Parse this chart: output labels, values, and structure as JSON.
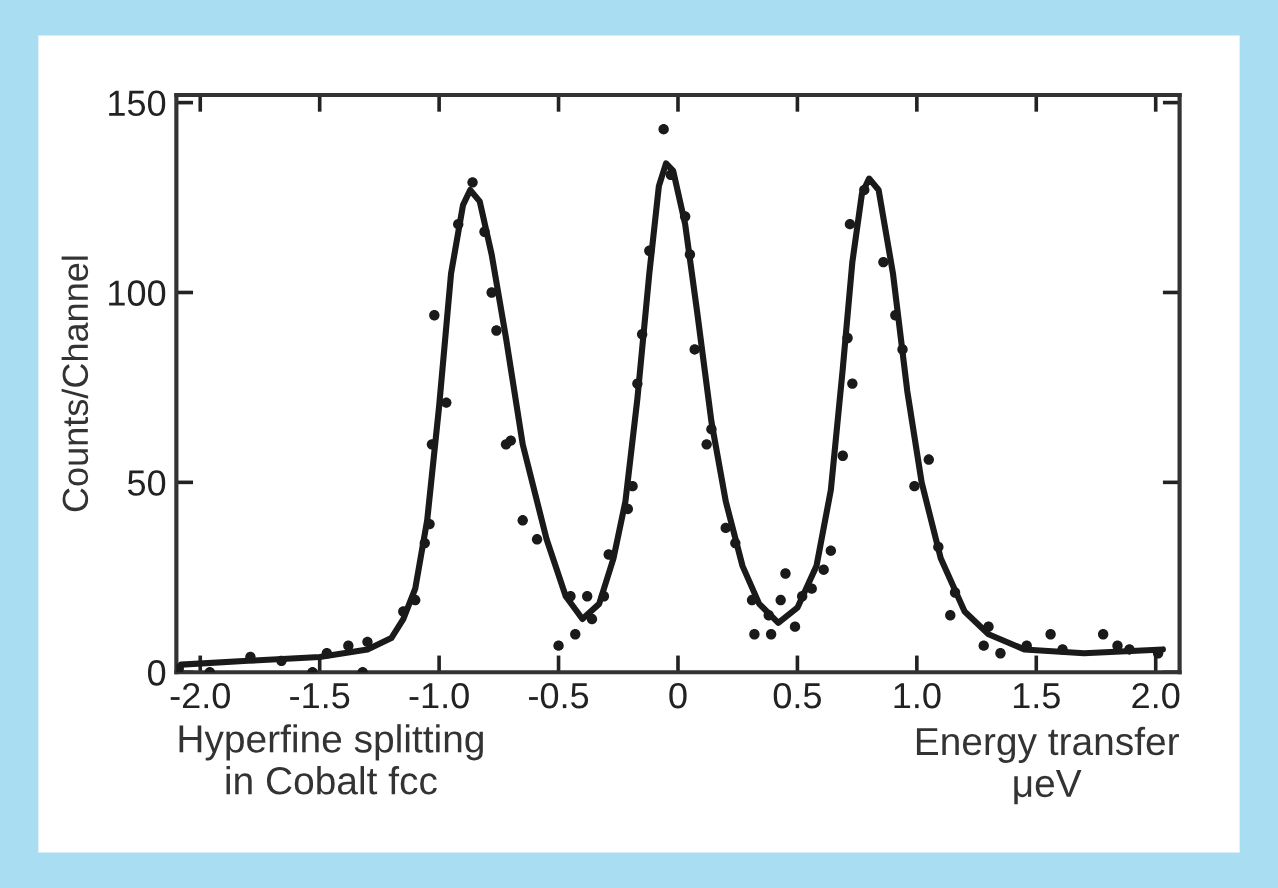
{
  "chart_data": {
    "type": "scatter",
    "ylabel": "Counts/Channel",
    "xlabel": "Energy transfer\nμeV",
    "annotations": [
      "Hyperfine splitting\nin Cobalt fcc"
    ],
    "xlim": [
      -2.1,
      2.1
    ],
    "ylim": [
      0,
      152
    ],
    "xticks": [
      {
        "value": -2.0,
        "label": "-2.0"
      },
      {
        "value": -1.5,
        "label": "-1.5"
      },
      {
        "value": -1.0,
        "label": "-1.0"
      },
      {
        "value": -0.5,
        "label": "-0.5"
      },
      0,
      {
        "value": 0.5,
        "label": "0.5"
      },
      {
        "value": 1.0,
        "label": "1.0"
      },
      {
        "value": 1.5,
        "label": "1.5"
      },
      {
        "value": 2.0,
        "label": "2.0"
      }
    ],
    "yticks": [
      0,
      50,
      100,
      150
    ],
    "grid": false,
    "legend": false,
    "series": [
      {
        "color": "#1a1a1a",
        "marker": "circle",
        "x": [
          -2.09,
          -1.96,
          -1.79,
          -1.66,
          -1.53,
          -1.47,
          -1.38,
          -1.32,
          -1.3,
          -1.15,
          -1.1,
          -1.06,
          -1.04,
          -1.03,
          -1.02,
          -0.97,
          -0.92,
          -0.86,
          -0.81,
          -0.78,
          -0.76,
          -0.72,
          -0.7,
          -0.65,
          -0.59,
          -0.5,
          -0.45,
          -0.43,
          -0.38,
          -0.36,
          -0.31,
          -0.29,
          -0.21,
          -0.19,
          -0.17,
          -0.15,
          -0.12,
          -0.06,
          -0.03,
          0.03,
          0.05,
          0.07,
          0.12,
          0.14,
          0.2,
          0.24,
          0.31,
          0.32,
          0.38,
          0.39,
          0.43,
          0.45,
          0.49,
          0.52,
          0.56,
          0.61,
          0.64,
          0.69,
          0.71,
          0.72,
          0.73,
          0.78,
          0.86,
          0.91,
          0.94,
          0.99,
          1.05,
          1.09,
          1.14,
          1.16,
          1.28,
          1.3,
          1.35,
          1.46,
          1.56,
          1.61,
          1.78,
          1.84,
          1.89,
          2.01
        ],
        "values": [
          1,
          0,
          4,
          3,
          0,
          5,
          7,
          0,
          8,
          16,
          19,
          34,
          39,
          60,
          94,
          71,
          118,
          129,
          116,
          100,
          90,
          60,
          61,
          40,
          35,
          7,
          20,
          10,
          20,
          14,
          20,
          31,
          43,
          49,
          76,
          89,
          111,
          143,
          131,
          120,
          110,
          85,
          60,
          64,
          38,
          34,
          19,
          10,
          15,
          10,
          19,
          26,
          12,
          20,
          22,
          27,
          32,
          57,
          88,
          118,
          76,
          127,
          108,
          94,
          85,
          49,
          56,
          33,
          15,
          21,
          7,
          12,
          5,
          7,
          10,
          6,
          10,
          7,
          6,
          5
        ]
      },
      {
        "type": "line",
        "color": "#1a1a1a",
        "marker": "none",
        "line_style": "solid",
        "x": [
          -2.08,
          -1.8,
          -1.5,
          -1.3,
          -1.2,
          -1.15,
          -1.1,
          -1.05,
          -1.0,
          -0.95,
          -0.9,
          -0.87,
          -0.83,
          -0.78,
          -0.72,
          -0.65,
          -0.55,
          -0.47,
          -0.4,
          -0.33,
          -0.27,
          -0.22,
          -0.17,
          -0.12,
          -0.08,
          -0.05,
          -0.02,
          0.03,
          0.08,
          0.14,
          0.2,
          0.27,
          0.34,
          0.42,
          0.5,
          0.58,
          0.64,
          0.69,
          0.73,
          0.77,
          0.8,
          0.84,
          0.9,
          0.96,
          1.02,
          1.1,
          1.2,
          1.3,
          1.45,
          1.7,
          2.03
        ],
        "values": [
          2,
          3,
          4,
          6,
          9,
          14,
          22,
          40,
          70,
          105,
          123,
          127,
          124,
          110,
          88,
          60,
          35,
          20,
          14,
          18,
          30,
          45,
          72,
          105,
          128,
          134,
          132,
          118,
          95,
          66,
          45,
          28,
          18,
          13,
          17,
          28,
          48,
          80,
          108,
          126,
          130,
          127,
          105,
          74,
          50,
          30,
          16,
          10,
          6,
          5,
          6
        ]
      }
    ]
  }
}
